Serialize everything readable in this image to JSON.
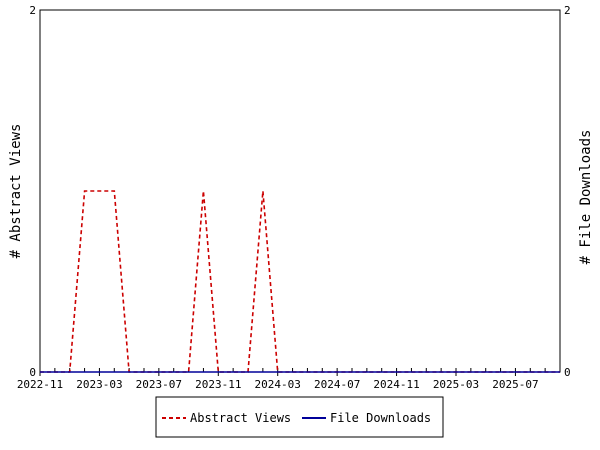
{
  "chart_data": {
    "type": "line",
    "x_axis": {
      "tick_labels": [
        "2022-11",
        "2023-03",
        "2023-07",
        "2023-11",
        "2024-03",
        "2024-07",
        "2024-11",
        "2025-03",
        "2025-07"
      ],
      "range": [
        "2022-11",
        "2025-10"
      ]
    },
    "y_left": {
      "label": "# Abstract Views",
      "range": [
        0,
        2
      ],
      "tick_labels": [
        "0",
        "2"
      ]
    },
    "y_right": {
      "label": "# File Downloads",
      "range": [
        0,
        2
      ],
      "tick_labels": [
        "0",
        "2"
      ]
    },
    "series": [
      {
        "name": "Abstract Views",
        "color": "#cc0000",
        "dash": true,
        "axis": "left",
        "points": [
          [
            "2022-11",
            0
          ],
          [
            "2023-01",
            0
          ],
          [
            "2023-02",
            1
          ],
          [
            "2023-03",
            1
          ],
          [
            "2023-04",
            1
          ],
          [
            "2023-05",
            0
          ],
          [
            "2023-09",
            0
          ],
          [
            "2023-10",
            1
          ],
          [
            "2023-11",
            0
          ],
          [
            "2024-01",
            0
          ],
          [
            "2024-02",
            1
          ],
          [
            "2024-03",
            0
          ],
          [
            "2025-10",
            0
          ]
        ]
      },
      {
        "name": "File Downloads",
        "color": "#000099",
        "dash": false,
        "axis": "right",
        "points": [
          [
            "2022-11",
            0
          ],
          [
            "2025-10",
            0
          ]
        ]
      }
    ],
    "legend": {
      "placement": "bottom"
    },
    "grid": false
  }
}
